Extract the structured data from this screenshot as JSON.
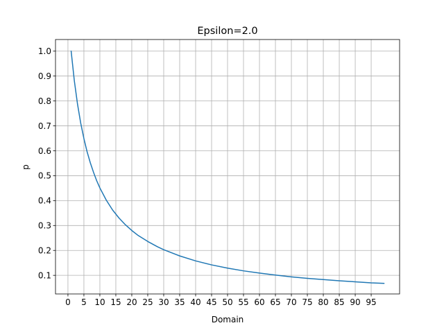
{
  "chart_data": {
    "type": "line",
    "title": "Epsilon=2.0",
    "xlabel": "Domain",
    "ylabel": "p",
    "xlim": [
      -3.9,
      103.9
    ],
    "ylim": [
      0.0253,
      1.0467
    ],
    "xticks": [
      0,
      5,
      10,
      15,
      20,
      25,
      30,
      35,
      40,
      45,
      50,
      55,
      60,
      65,
      70,
      75,
      80,
      85,
      90,
      95
    ],
    "yticks": [
      0.1,
      0.2,
      0.3,
      0.4,
      0.5,
      0.6,
      0.7,
      0.8,
      0.9,
      1.0
    ],
    "ytick_labels": [
      "0.1",
      "0.2",
      "0.3",
      "0.4",
      "0.5",
      "0.6",
      "0.7",
      "0.8",
      "0.9",
      "1.0"
    ],
    "grid": true,
    "series": [
      {
        "color": "#1f77b4",
        "x": [
          1,
          2,
          3,
          4,
          5,
          6,
          7,
          8,
          9,
          10,
          12,
          14,
          16,
          18,
          20,
          22,
          25,
          28,
          30,
          35,
          40,
          45,
          50,
          55,
          60,
          65,
          70,
          75,
          80,
          85,
          90,
          95,
          99
        ],
        "y": [
          1.0,
          0.881,
          0.787,
          0.711,
          0.649,
          0.596,
          0.552,
          0.514,
          0.48,
          0.451,
          0.402,
          0.362,
          0.33,
          0.303,
          0.28,
          0.26,
          0.236,
          0.215,
          0.203,
          0.178,
          0.158,
          0.142,
          0.129,
          0.118,
          0.109,
          0.101,
          0.094,
          0.088,
          0.083,
          0.078,
          0.074,
          0.07,
          0.068
        ]
      }
    ]
  }
}
